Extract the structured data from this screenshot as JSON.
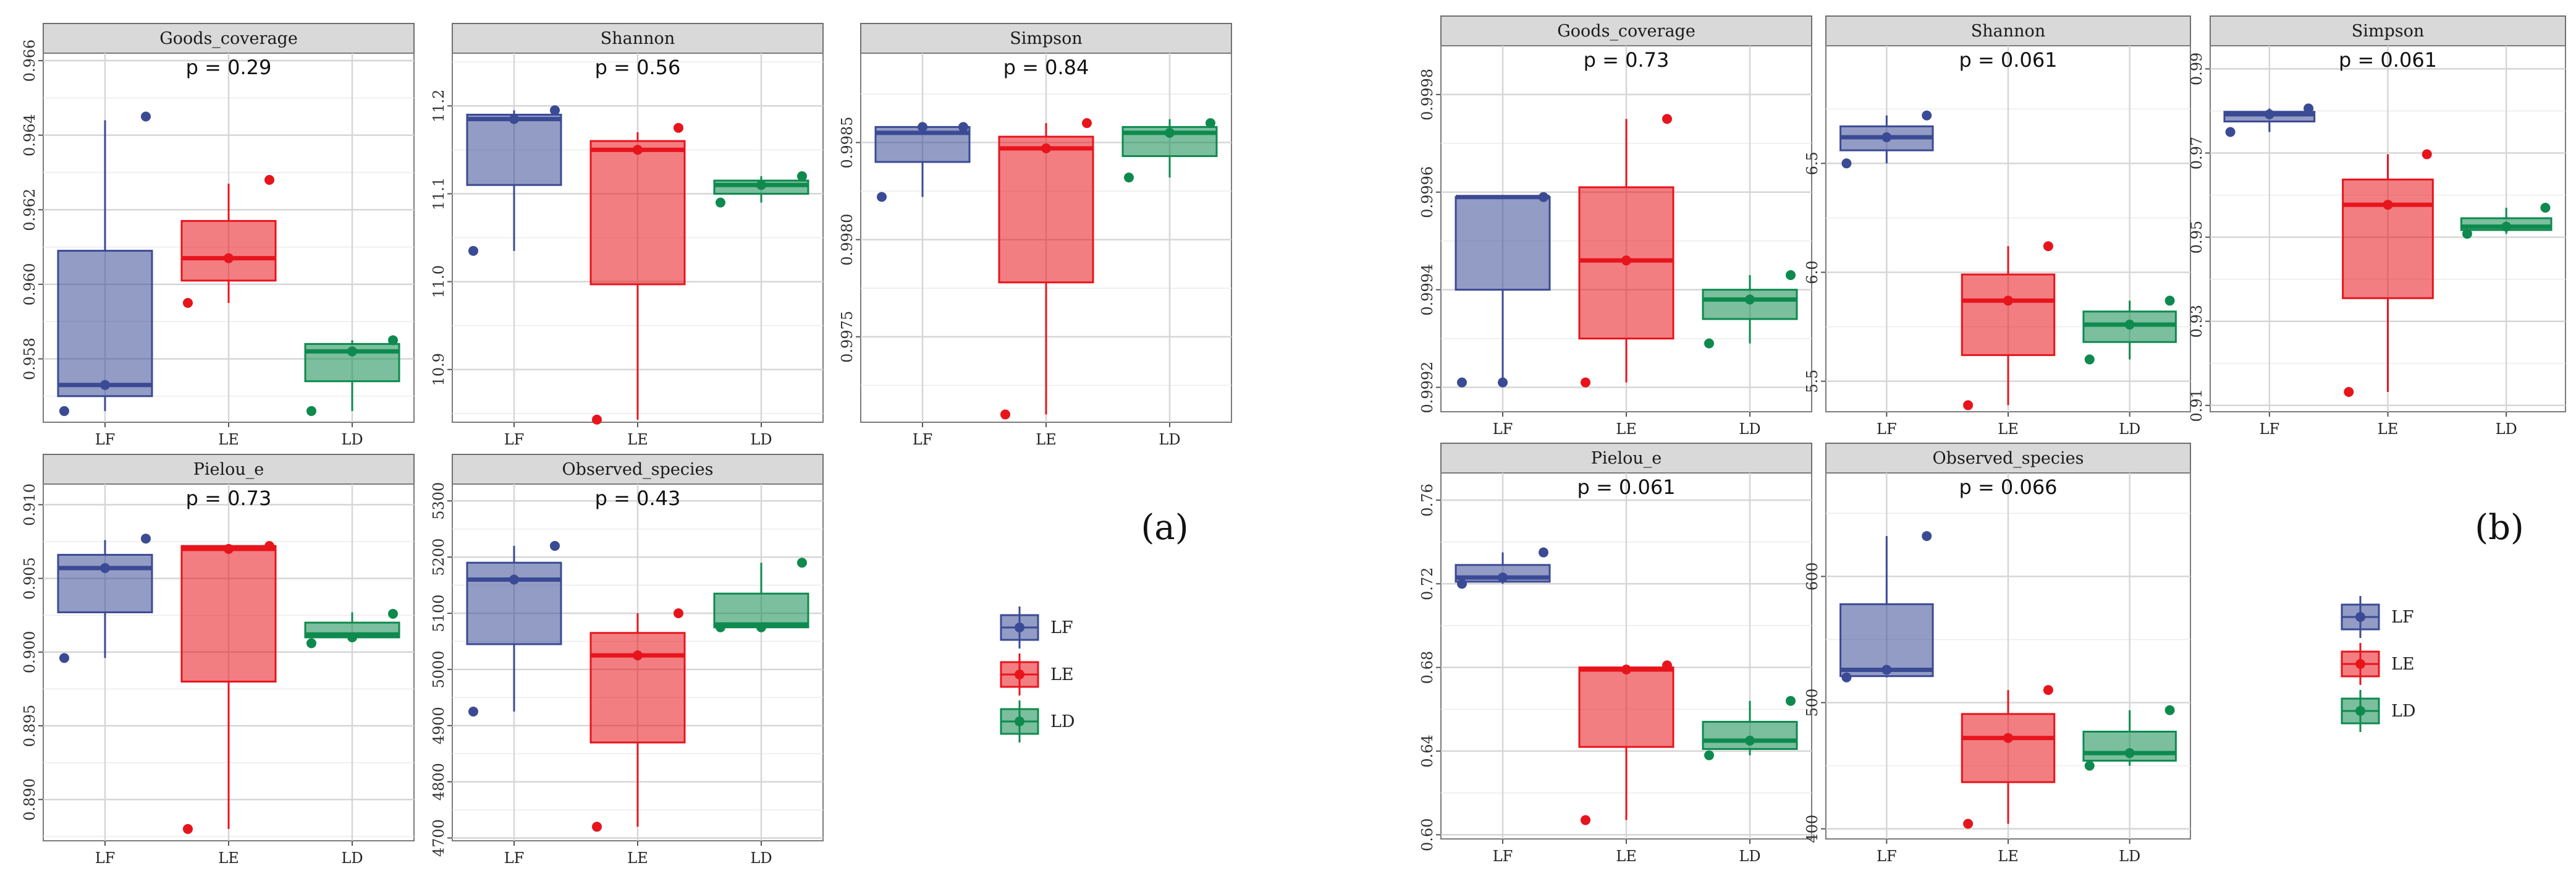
{
  "colors": {
    "LF": "#3b4a94",
    "LE": "#e8141c",
    "LD": "#0e8a4e",
    "strip": "#d9d9d9",
    "grid": "#d6d6d6"
  },
  "legend": {
    "items": [
      "LF",
      "LE",
      "LD"
    ]
  },
  "panel_labels": {
    "a": "(a)",
    "b": "(b)"
  },
  "chart_data": [
    {
      "type": "box",
      "id": "a-goods",
      "group": "a",
      "title": "Goods_coverage",
      "p_text": "p = 0.29",
      "categories": [
        "LF",
        "LE",
        "LD"
      ],
      "ylim": [
        0.9563,
        0.9662
      ],
      "yticks": [
        0.958,
        0.96,
        0.962,
        0.964,
        0.966
      ],
      "ytick_labels": [
        "0.958",
        "0.960",
        "0.962",
        "0.964",
        "0.966"
      ],
      "boxes": [
        {
          "q1": 0.957,
          "med": 0.9573,
          "q3": 0.9609,
          "lo": 0.9566,
          "hi": 0.9644
        },
        {
          "q1": 0.9601,
          "med": 0.9607,
          "q3": 0.9617,
          "lo": 0.9595,
          "hi": 0.9627
        },
        {
          "q1": 0.9574,
          "med": 0.9582,
          "q3": 0.9584,
          "lo": 0.9566,
          "hi": 0.9585
        }
      ],
      "points": [
        [
          0.9566,
          0.9573,
          0.9645
        ],
        [
          0.9595,
          0.9607,
          0.9628
        ],
        [
          0.9566,
          0.9582,
          0.9585
        ]
      ]
    },
    {
      "type": "box",
      "id": "a-shannon",
      "group": "a",
      "title": "Shannon",
      "p_text": "p = 0.56",
      "categories": [
        "LF",
        "LE",
        "LD"
      ],
      "ylim": [
        10.84,
        11.26
      ],
      "yticks": [
        10.9,
        11.0,
        11.1,
        11.2
      ],
      "ytick_labels": [
        "10.9",
        "11.0",
        "11.1",
        "11.2"
      ],
      "boxes": [
        {
          "q1": 11.11,
          "med": 11.185,
          "q3": 11.19,
          "lo": 11.035,
          "hi": 11.195
        },
        {
          "q1": 10.997,
          "med": 11.15,
          "q3": 11.16,
          "lo": 10.843,
          "hi": 11.17
        },
        {
          "q1": 11.1,
          "med": 11.11,
          "q3": 11.115,
          "lo": 11.09,
          "hi": 11.12
        }
      ],
      "points": [
        [
          11.035,
          11.185,
          11.195
        ],
        [
          10.843,
          11.15,
          11.175
        ],
        [
          11.09,
          11.11,
          11.12
        ]
      ]
    },
    {
      "type": "box",
      "id": "a-simpson",
      "group": "a",
      "title": "Simpson",
      "p_text": "p = 0.84",
      "categories": [
        "LF",
        "LE",
        "LD"
      ],
      "ylim": [
        0.99706,
        0.99896
      ],
      "yticks": [
        0.9975,
        0.998,
        0.9985
      ],
      "ytick_labels": [
        "0.9975",
        "0.9980",
        "0.9985"
      ],
      "boxes": [
        {
          "q1": 0.9984,
          "med": 0.99855,
          "q3": 0.99858,
          "lo": 0.99822,
          "hi": 0.99858
        },
        {
          "q1": 0.99778,
          "med": 0.99847,
          "q3": 0.99853,
          "lo": 0.9971,
          "hi": 0.9986
        },
        {
          "q1": 0.99843,
          "med": 0.99855,
          "q3": 0.99858,
          "lo": 0.99832,
          "hi": 0.99862
        }
      ],
      "points": [
        [
          0.99822,
          0.99858,
          0.99858
        ],
        [
          0.9971,
          0.99847,
          0.9986
        ],
        [
          0.99832,
          0.99855,
          0.9986
        ]
      ]
    },
    {
      "type": "box",
      "id": "a-pielou",
      "group": "a",
      "title": "Pielou_e",
      "p_text": "p = 0.73",
      "categories": [
        "LF",
        "LE",
        "LD"
      ],
      "ylim": [
        0.8872,
        0.9114
      ],
      "yticks": [
        0.89,
        0.895,
        0.9,
        0.905,
        0.91
      ],
      "ytick_labels": [
        "0.890",
        "0.895",
        "0.900",
        "0.905",
        "0.910"
      ],
      "boxes": [
        {
          "q1": 0.9027,
          "med": 0.9057,
          "q3": 0.9066,
          "lo": 0.8996,
          "hi": 0.9076
        },
        {
          "q1": 0.898,
          "med": 0.907,
          "q3": 0.9072,
          "lo": 0.888,
          "hi": 0.9072
        },
        {
          "q1": 0.901,
          "med": 0.9012,
          "q3": 0.902,
          "lo": 0.901,
          "hi": 0.9027
        }
      ],
      "points": [
        [
          0.8996,
          0.9057,
          0.9077
        ],
        [
          0.888,
          0.907,
          0.9072
        ],
        [
          0.9006,
          0.901,
          0.9026
        ]
      ]
    },
    {
      "type": "box",
      "id": "a-observed",
      "group": "a",
      "title": "Observed_species",
      "p_text": "p = 0.43",
      "categories": [
        "LF",
        "LE",
        "LD"
      ],
      "ylim": [
        4695,
        5330
      ],
      "yticks": [
        4700,
        4800,
        4900,
        5000,
        5100,
        5200,
        5300
      ],
      "ytick_labels": [
        "4700",
        "4800",
        "4900",
        "5000",
        "5100",
        "5200",
        "5300"
      ],
      "boxes": [
        {
          "q1": 5045,
          "med": 5160,
          "q3": 5190,
          "lo": 4925,
          "hi": 5220
        },
        {
          "q1": 4870,
          "med": 5025,
          "q3": 5065,
          "lo": 4720,
          "hi": 5100
        },
        {
          "q1": 5075,
          "med": 5080,
          "q3": 5135,
          "lo": 5075,
          "hi": 5190
        }
      ],
      "points": [
        [
          4925,
          5160,
          5220
        ],
        [
          4720,
          5025,
          5100
        ],
        [
          5075,
          5075,
          5190
        ]
      ]
    },
    {
      "type": "box",
      "id": "b-goods",
      "group": "b",
      "title": "Goods_coverage",
      "p_text": "p = 0.73",
      "categories": [
        "LF",
        "LE",
        "LD"
      ],
      "ylim": [
        0.99915,
        0.9999
      ],
      "yticks": [
        0.9992,
        0.9994,
        0.9996,
        0.9998
      ],
      "ytick_labels": [
        "0.9992",
        "0.9994",
        "0.9996",
        "0.9998"
      ],
      "boxes": [
        {
          "q1": 0.9994,
          "med": 0.99959,
          "q3": 0.99959,
          "lo": 0.99921,
          "hi": 0.99959
        },
        {
          "q1": 0.9993,
          "med": 0.99946,
          "q3": 0.99961,
          "lo": 0.99921,
          "hi": 0.99975
        },
        {
          "q1": 0.99934,
          "med": 0.99938,
          "q3": 0.9994,
          "lo": 0.99929,
          "hi": 0.99943
        }
      ],
      "points": [
        [
          0.99921,
          0.99921,
          0.99959
        ],
        [
          0.99921,
          0.99946,
          0.99975
        ],
        [
          0.99929,
          0.99938,
          0.99943
        ]
      ]
    },
    {
      "type": "box",
      "id": "b-shannon",
      "group": "b",
      "title": "Shannon",
      "p_text": "p = 0.061",
      "categories": [
        "LF",
        "LE",
        "LD"
      ],
      "ylim": [
        5.36,
        7.04
      ],
      "yticks": [
        5.5,
        6.0,
        6.5
      ],
      "ytick_labels": [
        "5.5",
        "6.0",
        "6.5"
      ],
      "boxes": [
        {
          "q1": 6.56,
          "med": 6.62,
          "q3": 6.67,
          "lo": 6.5,
          "hi": 6.72
        },
        {
          "q1": 5.62,
          "med": 5.87,
          "q3": 5.99,
          "lo": 5.39,
          "hi": 6.12
        },
        {
          "q1": 5.68,
          "med": 5.76,
          "q3": 5.82,
          "lo": 5.6,
          "hi": 5.87
        }
      ],
      "points": [
        [
          6.5,
          6.62,
          6.72
        ],
        [
          5.39,
          5.87,
          6.12
        ],
        [
          5.6,
          5.76,
          5.87
        ]
      ]
    },
    {
      "type": "box",
      "id": "b-simpson",
      "group": "b",
      "title": "Simpson",
      "p_text": "p = 0.061",
      "categories": [
        "LF",
        "LE",
        "LD"
      ],
      "ylim": [
        0.9085,
        0.9955
      ],
      "yticks": [
        0.91,
        0.93,
        0.95,
        0.97,
        0.99
      ],
      "ytick_labels": [
        "0.91",
        "0.93",
        "0.95",
        "0.97",
        "0.99"
      ],
      "boxes": [
        {
          "q1": 0.9775,
          "med": 0.9792,
          "q3": 0.9798,
          "lo": 0.975,
          "hi": 0.9806
        },
        {
          "q1": 0.9355,
          "med": 0.9577,
          "q3": 0.9637,
          "lo": 0.9132,
          "hi": 0.9697
        },
        {
          "q1": 0.9517,
          "med": 0.9525,
          "q3": 0.9545,
          "lo": 0.9508,
          "hi": 0.957
        }
      ],
      "points": [
        [
          0.975,
          0.9792,
          0.9806
        ],
        [
          0.9132,
          0.9577,
          0.9697
        ],
        [
          0.9508,
          0.9525,
          0.957
        ]
      ]
    },
    {
      "type": "box",
      "id": "b-pielou",
      "group": "b",
      "title": "Pielou_e",
      "p_text": "p = 0.061",
      "categories": [
        "LF",
        "LE",
        "LD"
      ],
      "ylim": [
        0.598,
        0.773
      ],
      "yticks": [
        0.6,
        0.64,
        0.68,
        0.72,
        0.76
      ],
      "ytick_labels": [
        "0.60",
        "0.64",
        "0.68",
        "0.72",
        "0.76"
      ],
      "boxes": [
        {
          "q1": 0.721,
          "med": 0.723,
          "q3": 0.729,
          "lo": 0.72,
          "hi": 0.735
        },
        {
          "q1": 0.642,
          "med": 0.679,
          "q3": 0.68,
          "lo": 0.607,
          "hi": 0.68
        },
        {
          "q1": 0.641,
          "med": 0.645,
          "q3": 0.654,
          "lo": 0.638,
          "hi": 0.664
        }
      ],
      "points": [
        [
          0.72,
          0.723,
          0.735
        ],
        [
          0.607,
          0.679,
          0.681
        ],
        [
          0.638,
          0.645,
          0.664
        ]
      ]
    },
    {
      "type": "box",
      "id": "b-observed",
      "group": "b",
      "title": "Observed_species",
      "p_text": "p = 0.066",
      "categories": [
        "LF",
        "LE",
        "LD"
      ],
      "ylim": [
        392,
        682
      ],
      "yticks": [
        400,
        500,
        600
      ],
      "ytick_labels": [
        "400",
        "500",
        "600"
      ],
      "boxes": [
        {
          "q1": 521,
          "med": 526,
          "q3": 578,
          "lo": 520,
          "hi": 632
        },
        {
          "q1": 437,
          "med": 472,
          "q3": 491,
          "lo": 404,
          "hi": 510
        },
        {
          "q1": 454,
          "med": 460,
          "q3": 477,
          "lo": 450,
          "hi": 494
        }
      ],
      "points": [
        [
          520,
          526,
          632
        ],
        [
          404,
          472,
          510
        ],
        [
          450,
          460,
          494
        ]
      ]
    }
  ]
}
